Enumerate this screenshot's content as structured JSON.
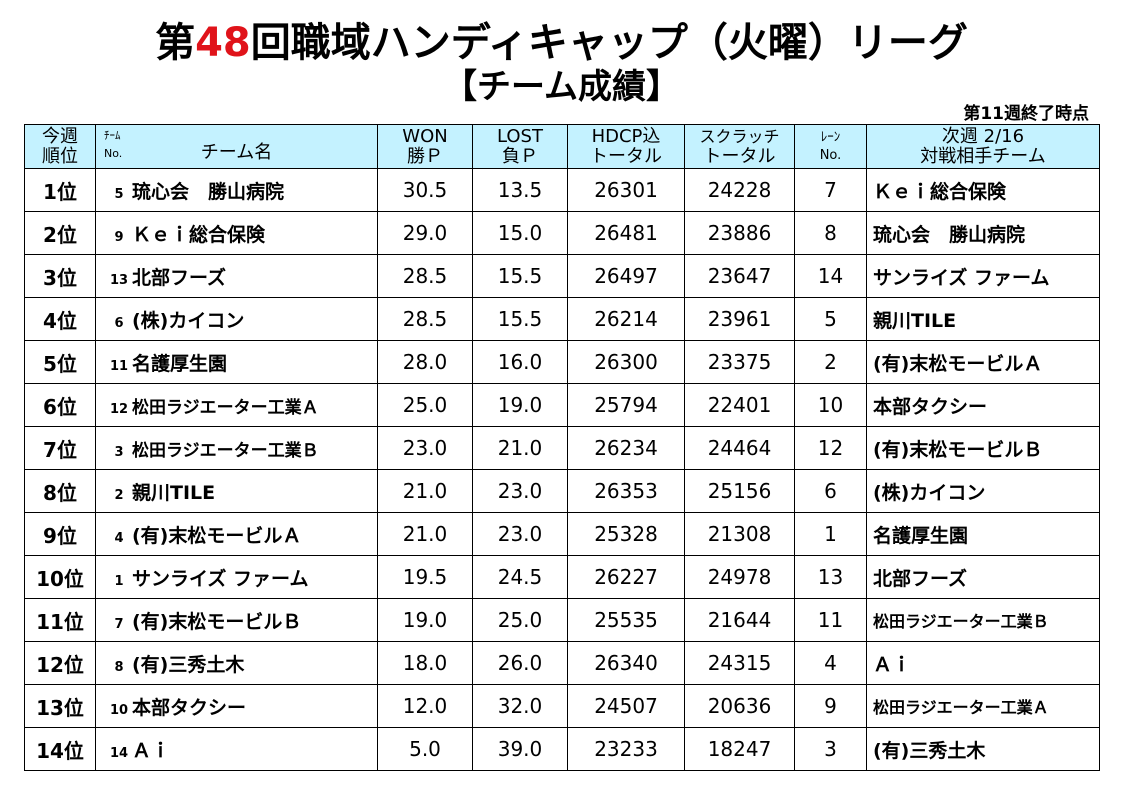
{
  "title": {
    "prefix": "第",
    "number": "48",
    "suffix": "回職域ハンディキャップ（火曜）リーグ"
  },
  "subtitle": "【チーム成績】",
  "status": "第11週終了時点",
  "headers": {
    "rank_1": "今週",
    "rank_2": "順位",
    "team_no": "ﾁｰﾑ",
    "team_no_2": "No.",
    "team_name": "チーム名",
    "won_1": "WON",
    "won_2": "勝Ｐ",
    "lost_1": "LOST",
    "lost_2": "負Ｐ",
    "hdcp_1": "HDCP込",
    "hdcp_2": "トータル",
    "scratch_1": "スクラッチ",
    "scratch_2": "トータル",
    "lane_1": "ﾚｰﾝ",
    "lane_2": "No.",
    "next_1": "次週 2/16",
    "next_2": "対戦相手チーム"
  },
  "rows": [
    {
      "rank": "1位",
      "no": "5",
      "team": "琉心会　勝山病院",
      "won": "30.5",
      "lost": "13.5",
      "hdcp": "26301",
      "scratch": "24228",
      "lane": "7",
      "opponent": "Ｋｅｉ総合保険"
    },
    {
      "rank": "2位",
      "no": "9",
      "team": "Ｋｅｉ総合保険",
      "won": "29.0",
      "lost": "15.0",
      "hdcp": "26481",
      "scratch": "23886",
      "lane": "8",
      "opponent": "琉心会　勝山病院"
    },
    {
      "rank": "3位",
      "no": "13",
      "team": "北部フーズ",
      "won": "28.5",
      "lost": "15.5",
      "hdcp": "26497",
      "scratch": "23647",
      "lane": "14",
      "opponent": "サンライズ ファーム"
    },
    {
      "rank": "4位",
      "no": "6",
      "team": "(株)カイコン",
      "won": "28.5",
      "lost": "15.5",
      "hdcp": "26214",
      "scratch": "23961",
      "lane": "5",
      "opponent": "親川TILE"
    },
    {
      "rank": "5位",
      "no": "11",
      "team": "名護厚生園",
      "won": "28.0",
      "lost": "16.0",
      "hdcp": "26300",
      "scratch": "23375",
      "lane": "2",
      "opponent": "(有)末松モービルＡ"
    },
    {
      "rank": "6位",
      "no": "12",
      "team": "松田ラジエーター工業Ａ",
      "won": "25.0",
      "lost": "19.0",
      "hdcp": "25794",
      "scratch": "22401",
      "lane": "10",
      "opponent": "本部タクシー"
    },
    {
      "rank": "7位",
      "no": "3",
      "team": "松田ラジエーター工業Ｂ",
      "won": "23.0",
      "lost": "21.0",
      "hdcp": "26234",
      "scratch": "24464",
      "lane": "12",
      "opponent": "(有)末松モービルＢ"
    },
    {
      "rank": "8位",
      "no": "2",
      "team": "親川TILE",
      "won": "21.0",
      "lost": "23.0",
      "hdcp": "26353",
      "scratch": "25156",
      "lane": "6",
      "opponent": "(株)カイコン"
    },
    {
      "rank": "9位",
      "no": "4",
      "team": "(有)末松モービルＡ",
      "won": "21.0",
      "lost": "23.0",
      "hdcp": "25328",
      "scratch": "21308",
      "lane": "1",
      "opponent": "名護厚生園"
    },
    {
      "rank": "10位",
      "no": "1",
      "team": "サンライズ ファーム",
      "won": "19.5",
      "lost": "24.5",
      "hdcp": "26227",
      "scratch": "24978",
      "lane": "13",
      "opponent": "北部フーズ"
    },
    {
      "rank": "11位",
      "no": "7",
      "team": "(有)末松モービルＢ",
      "won": "19.0",
      "lost": "25.0",
      "hdcp": "25535",
      "scratch": "21644",
      "lane": "11",
      "opponent": "松田ラジエーター工業Ｂ"
    },
    {
      "rank": "12位",
      "no": "8",
      "team": "(有)三秀土木",
      "won": "18.0",
      "lost": "26.0",
      "hdcp": "26340",
      "scratch": "24315",
      "lane": "4",
      "opponent": "Ａｉ"
    },
    {
      "rank": "13位",
      "no": "10",
      "team": "本部タクシー",
      "won": "12.0",
      "lost": "32.0",
      "hdcp": "24507",
      "scratch": "20636",
      "lane": "9",
      "opponent": "松田ラジエーター工業Ａ"
    },
    {
      "rank": "14位",
      "no": "14",
      "team": "Ａｉ",
      "won": "5.0",
      "lost": "39.0",
      "hdcp": "23233",
      "scratch": "18247",
      "lane": "3",
      "opponent": "(有)三秀土木"
    }
  ]
}
